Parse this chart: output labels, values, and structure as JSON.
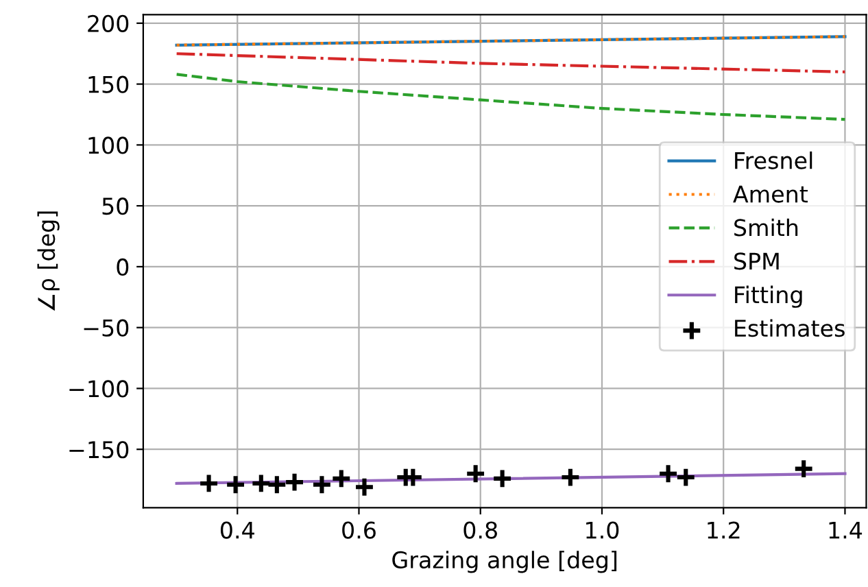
{
  "chart_data": {
    "type": "line",
    "xlabel": "Grazing angle [deg]",
    "ylabel": "∠ρ [deg]",
    "xlim": [
      0.245,
      1.435
    ],
    "ylim": [
      -198,
      207
    ],
    "xticks": [
      0.4,
      0.6,
      0.8,
      {
        "value": 1,
        "label": "1.0"
      },
      1.2,
      1.4
    ],
    "yticks": [
      -150,
      -100,
      -50,
      0,
      50,
      100,
      150,
      200
    ],
    "grid": true,
    "legend": "right",
    "series": [
      {
        "name": "Fresnel",
        "color": "#1f77b4",
        "line_style": "solid",
        "x": [
          0.3,
          1.4
        ],
        "values": [
          182,
          189
        ]
      },
      {
        "name": "Ament",
        "color": "#ff7f0e",
        "line_style": "dotted",
        "x": [
          0.3,
          1.4
        ],
        "values": [
          182,
          189
        ]
      },
      {
        "name": "Smith",
        "color": "#2ca02c",
        "line_style": "dashed",
        "x": [
          0.3,
          0.4,
          0.6,
          0.8,
          1.0,
          1.2,
          1.4
        ],
        "values": [
          158,
          152,
          144,
          137,
          130,
          125,
          121
        ]
      },
      {
        "name": "SPM",
        "color": "#d62728",
        "line_style": "dashdot",
        "x": [
          0.3,
          0.8,
          1.4
        ],
        "values": [
          175,
          167,
          160
        ]
      },
      {
        "name": "Fitting",
        "color": "#9467bd",
        "line_style": "solid",
        "x": [
          0.3,
          1.4
        ],
        "values": [
          -178,
          -170
        ]
      },
      {
        "name": "Estimates",
        "type": "scatter",
        "marker": "cross",
        "color": "#000000",
        "x": [
          0.353,
          0.397,
          0.439,
          0.465,
          0.494,
          0.539,
          0.571,
          0.609,
          0.677,
          0.689,
          0.792,
          0.836,
          0.948,
          1.109,
          1.138,
          1.332
        ],
        "values": [
          -178,
          -179,
          -178,
          -179,
          -177,
          -179,
          -174,
          -181,
          -173,
          -173,
          -170,
          -174,
          -173,
          -170,
          -173,
          -166
        ]
      }
    ]
  }
}
